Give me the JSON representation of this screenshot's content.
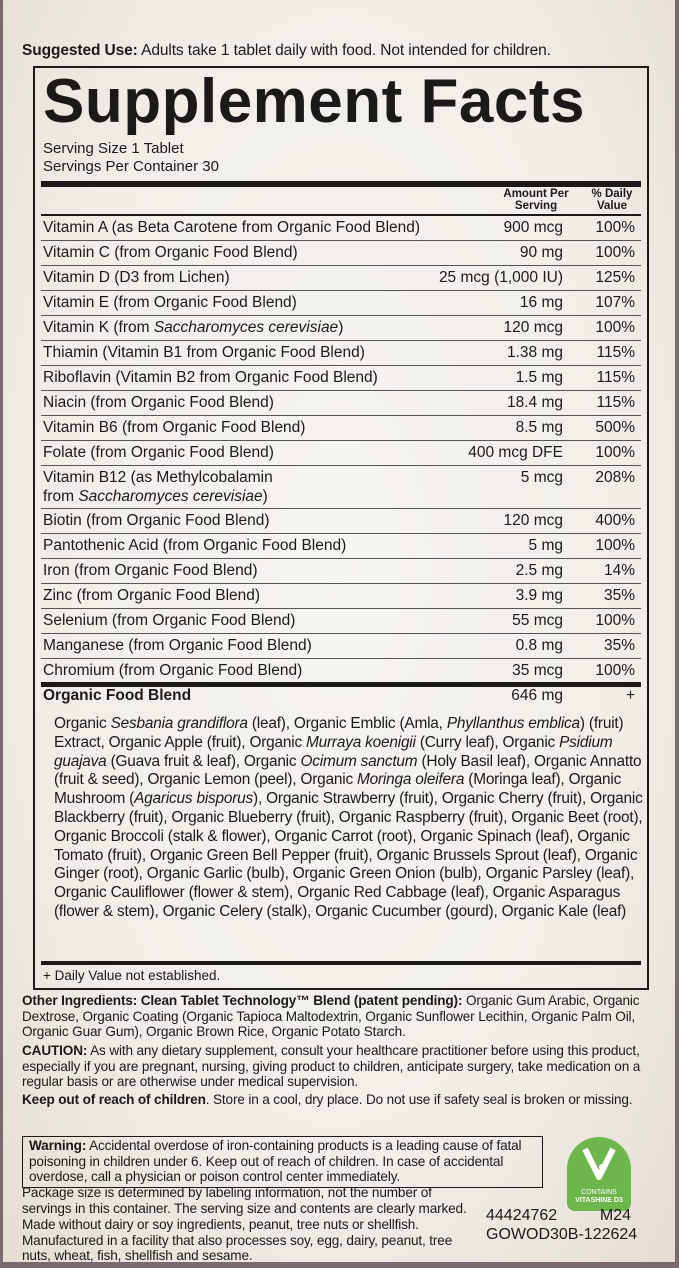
{
  "suggested_use": {
    "label": "Suggested Use:",
    "text": " Adults take 1 tablet daily with food. Not intended for children."
  },
  "title": "Supplement Facts",
  "serving_size": "Serving Size 1 Tablet",
  "servings_per_container": "Servings Per Container 30",
  "headers": {
    "amount": "Amount Per Serving",
    "dv": "% Daily Value"
  },
  "nutrients": [
    {
      "name": "Vitamin A (as Beta Carotene from Organic Food Blend)",
      "amount": "900 mcg",
      "dv": "100%"
    },
    {
      "name": "Vitamin C (from Organic Food Blend)",
      "amount": "90 mg",
      "dv": "100%"
    },
    {
      "name": "Vitamin D (D3 from Lichen)",
      "amount": "25 mcg (1,000 IU)",
      "dv": "125%"
    },
    {
      "name": "Vitamin E (from Organic Food Blend)",
      "amount": "16 mg",
      "dv": "107%"
    },
    {
      "name": "Vitamin K (from ",
      "name_italic": "Saccharomyces cerevisiae",
      "name_end": ")",
      "amount": "120 mcg",
      "dv": "100%"
    },
    {
      "name": "Thiamin (Vitamin B1 from Organic Food Blend)",
      "amount": "1.38 mg",
      "dv": "115%"
    },
    {
      "name": "Riboflavin (Vitamin B2 from Organic Food Blend)",
      "amount": "1.5 mg",
      "dv": "115%"
    },
    {
      "name": "Niacin (from Organic Food Blend)",
      "amount": "18.4 mg",
      "dv": "115%"
    },
    {
      "name": "Vitamin B6 (from Organic Food Blend)",
      "amount": "8.5 mg",
      "dv": "500%"
    },
    {
      "name": "Folate (from Organic Food Blend)",
      "amount": "400 mcg DFE",
      "dv": "100%"
    },
    {
      "name": "Vitamin B12 (as Methylcobalamin",
      "name_line2": "from ",
      "name_italic": "Saccharomyces cerevisiae",
      "name_end": ")",
      "amount": "5 mcg",
      "dv": "208%"
    },
    {
      "name": "Biotin (from Organic Food Blend)",
      "amount": "120 mcg",
      "dv": "400%"
    },
    {
      "name": "Pantothenic Acid (from Organic Food Blend)",
      "amount": "5 mg",
      "dv": "100%"
    },
    {
      "name": "Iron (from Organic Food Blend)",
      "amount": "2.5 mg",
      "dv": "14%"
    },
    {
      "name": "Zinc (from Organic Food Blend)",
      "amount": "3.9 mg",
      "dv": "35%"
    },
    {
      "name": "Selenium (from Organic Food Blend)",
      "amount": "55 mcg",
      "dv": "100%"
    },
    {
      "name": "Manganese (from Organic Food Blend)",
      "amount": "0.8 mg",
      "dv": "35%"
    },
    {
      "name": "Chromium (from Organic Food Blend)",
      "amount": "35 mcg",
      "dv": "100%"
    }
  ],
  "blend": {
    "name": "Organic Food Blend",
    "amount": "646 mg",
    "dv": "+",
    "ingredients": [
      [
        "Organic ",
        0
      ],
      [
        "Sesbania grandiflora",
        1
      ],
      [
        " (leaf), Organic Emblic (Amla, ",
        0
      ],
      [
        "Phyllanthus emblica",
        1
      ],
      [
        ") (fruit) Extract, Organic Apple (fruit), Organic ",
        0
      ],
      [
        "Murraya koenigii",
        1
      ],
      [
        " (Curry leaf), Organic ",
        0
      ],
      [
        "Psidium guajava",
        1
      ],
      [
        " (Guava fruit & leaf), Organic ",
        0
      ],
      [
        "Ocimum sanctum",
        1
      ],
      [
        " (Holy Basil leaf), Organic Annatto (fruit & seed), Organic Lemon (peel), Organic ",
        0
      ],
      [
        "Moringa oleifera",
        1
      ],
      [
        " (Moringa leaf), Organic Mushroom (",
        0
      ],
      [
        "Agaricus bisporus",
        1
      ],
      [
        "), Organic Strawberry (fruit), Organic Cherry (fruit), Organic Blackberry (fruit), Organic Blueberry (fruit), Organic Raspberry (fruit), Organic Beet (root), Organic Broccoli (stalk & flower), Organic Carrot (root), Organic Spinach (leaf), Organic Tomato (fruit), Organic Green Bell Pepper (fruit), Organic Brussels Sprout (leaf), Organic Ginger (root), Organic Garlic (bulb), Organic Green Onion (bulb), Organic Parsley (leaf), Organic Cauliflower (flower & stem), Organic Red Cabbage (leaf), Organic Asparagus (flower & stem), Organic Celery (stalk), Organic Cucumber (gourd), Organic Kale (leaf)",
        0
      ]
    ]
  },
  "footnote": "+ Daily Value not established.",
  "other_ingredients": {
    "label": "Other Ingredients: Clean Tablet Technology™ Blend (patent pending):",
    "text": " Organic Gum Arabic, Organic Dextrose, Organic Coating (Organic Tapioca Maltodextrin, Organic Sunflower Lecithin, Organic Palm Oil, Organic Guar Gum), Organic Brown Rice, Organic Potato Starch."
  },
  "caution": {
    "label": "CAUTION:",
    "text": " As with any dietary supplement, consult your healthcare practitioner before using this product, especially if you are pregnant, nursing, giving product to children, anticipate surgery, take medication on a regular basis or are otherwise under medical supervision."
  },
  "keep_out": {
    "label": "Keep out of reach of children",
    "text": ". Store in a cool, dry place. Do not use if safety seal is broken or missing."
  },
  "warning": {
    "label": "Warning:",
    "text": " Accidental overdose of iron-containing products is a leading cause of fatal poisoning in children under 6. Keep out of reach of children. In case of accidental overdose, call a physician or poison control center immediately."
  },
  "package_note": "Package size is determined by labeling information, not the number of servings in this container. The serving size and contents are clearly marked.",
  "allergen_note": "Made without dairy or soy ingredients, peanut, tree nuts or shellfish. Manufactured in a facility that also processes soy, egg, dairy, peanut, tree nuts, wheat, fish, shellfish and sesame.",
  "badge": {
    "line1": "CONTAINS",
    "line2": "VITASHINE D3",
    "color": "#6cb64c"
  },
  "codes": {
    "number": "44424762",
    "m": "M24",
    "lot": "GOWOD30B-122624"
  }
}
